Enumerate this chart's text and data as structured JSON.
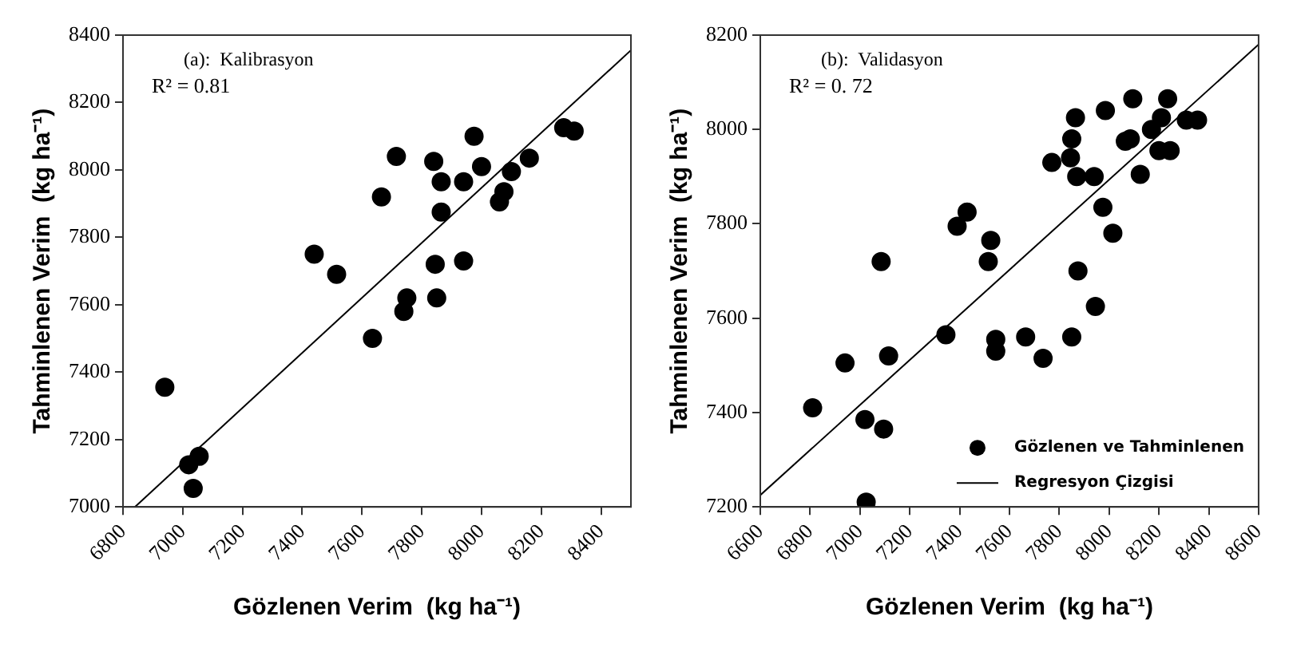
{
  "chart_data": [
    {
      "type": "scatter",
      "annotations": [
        "(a):  Kalibrasyon",
        "R² = 0.81"
      ],
      "xlabel": "Gözlenen Verim  (kg ha⁻¹)",
      "ylabel": "Tahminlenen Verim  (kg ha⁻¹)",
      "xlim": [
        6800,
        8500
      ],
      "xticks": [
        6800,
        7000,
        7200,
        7400,
        7600,
        7800,
        8000,
        8200,
        8400
      ],
      "ylim": [
        7000,
        8400
      ],
      "yticks": [
        7000,
        7200,
        7400,
        7600,
        7800,
        8000,
        8200,
        8400
      ],
      "grid": false,
      "marker": "circle",
      "series": [
        {
          "color": "#000000",
          "x": [
            6940,
            7020,
            7055,
            7035,
            7440,
            7515,
            7635,
            7665,
            7715,
            7740,
            7750,
            7840,
            7845,
            7850,
            7865,
            7865,
            7940,
            7940,
            7975,
            8000,
            8060,
            8075,
            8100,
            8160,
            8275,
            8310
          ],
          "values": [
            7355,
            7125,
            7150,
            7055,
            7750,
            7690,
            7500,
            7920,
            8040,
            7580,
            7620,
            8025,
            7720,
            7620,
            7965,
            7875,
            7965,
            7730,
            8100,
            8010,
            7905,
            7935,
            7995,
            8035,
            8125,
            8115
          ]
        },
        {
          "type": "line",
          "color": "#000000",
          "marker": "none",
          "x": [
            6840,
            8500
          ],
          "values": [
            7000,
            8355
          ]
        }
      ]
    },
    {
      "type": "scatter",
      "annotations": [
        "(b):  Validasyon",
        "R² = 0. 72"
      ],
      "xlabel": "Gözlenen Verim  (kg ha⁻¹)",
      "ylabel": "Tahminlenen Verim  (kg ha⁻¹)",
      "xlim": [
        6600,
        8600
      ],
      "xticks": [
        6600,
        6800,
        7000,
        7200,
        7400,
        7600,
        7800,
        8000,
        8200,
        8400,
        8600
      ],
      "ylim": [
        7200,
        8200
      ],
      "yticks": [
        7200,
        7400,
        7600,
        7800,
        8000,
        8200
      ],
      "grid": false,
      "marker": "circle",
      "legend": "bottom right",
      "series": [
        {
          "name": "Gözlenen ve Tahminlenen",
          "color": "#000000",
          "x": [
            6810,
            6940,
            7020,
            7025,
            7085,
            7095,
            7115,
            7345,
            7390,
            7430,
            7515,
            7525,
            7545,
            7545,
            7665,
            7735,
            7770,
            7845,
            7850,
            7850,
            7865,
            7870,
            7875,
            7940,
            7945,
            7975,
            7985,
            8015,
            8065,
            8085,
            8095,
            8125,
            8170,
            8200,
            8210,
            8235,
            8245,
            8310,
            8355
          ],
          "values": [
            7410,
            7505,
            7385,
            7210,
            7720,
            7365,
            7520,
            7565,
            7795,
            7825,
            7720,
            7765,
            7555,
            7530,
            7560,
            7515,
            7930,
            7940,
            7980,
            7560,
            8025,
            7900,
            7700,
            7900,
            7625,
            7835,
            8040,
            7780,
            7975,
            7980,
            8065,
            7905,
            8000,
            7955,
            8025,
            8065,
            7955,
            8020,
            8020
          ]
        },
        {
          "name": "Regresyon Çizgisi",
          "type": "line",
          "color": "#000000",
          "marker": "none",
          "x": [
            6600,
            8600
          ],
          "values": [
            7225,
            8180
          ]
        }
      ]
    }
  ]
}
